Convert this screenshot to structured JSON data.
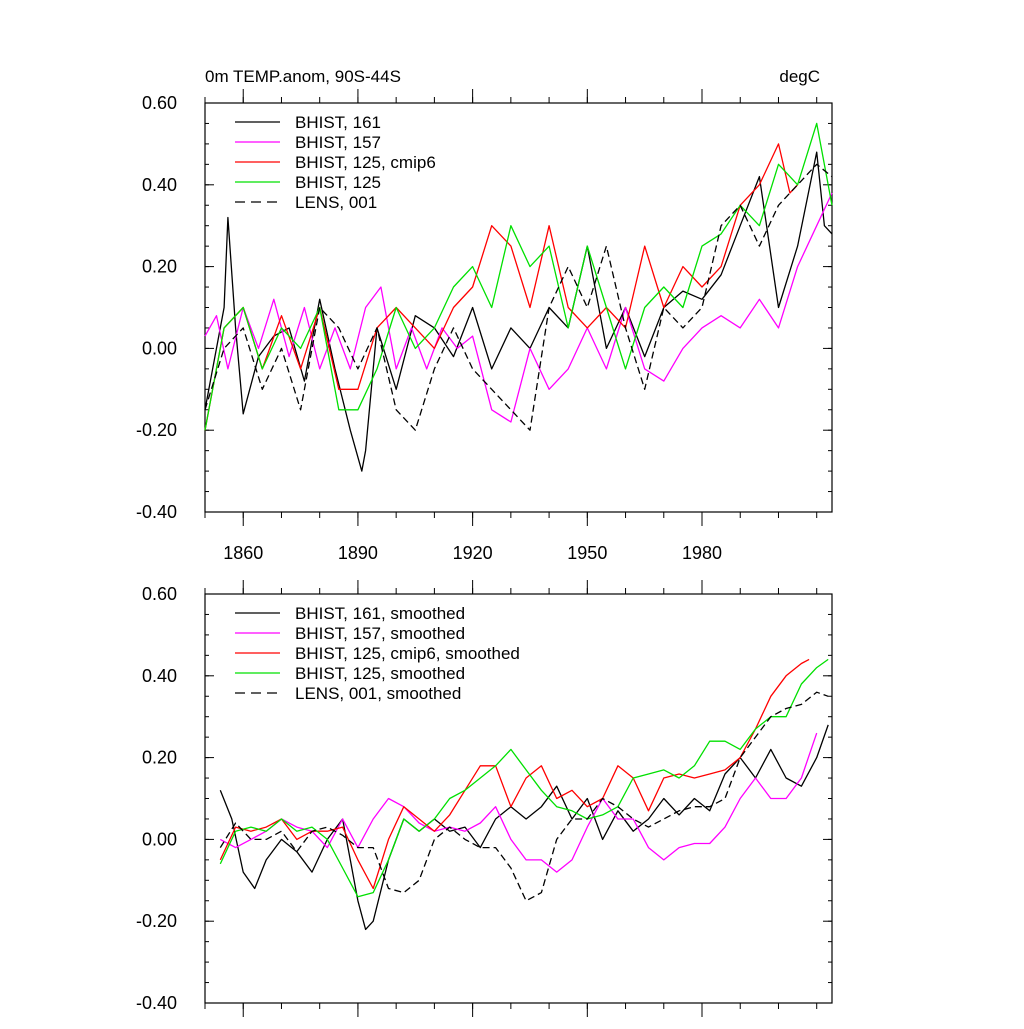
{
  "title_left": "0m TEMP.anom, 90S-44S",
  "title_right": "degC",
  "chart_data": [
    {
      "type": "line",
      "xlim": [
        1850,
        2014
      ],
      "ylim": [
        -0.4,
        0.6
      ],
      "xticks": [
        1860,
        1890,
        1920,
        1950,
        1980
      ],
      "xtick_labels": [
        "1860",
        "1890",
        "1920",
        "1950",
        "1980"
      ],
      "yticks": [
        -0.4,
        -0.2,
        0.0,
        0.2,
        0.4,
        0.6
      ],
      "ytick_labels": [
        "-0.40",
        "-0.20",
        "0.00",
        "0.20",
        "0.40",
        "0.60"
      ],
      "legend_position": "top-left",
      "series": [
        {
          "name": "BHIST, 161",
          "color": "#000000",
          "dash": "solid",
          "x": [
            1850,
            1855,
            1856,
            1858,
            1860,
            1864,
            1868,
            1872,
            1876,
            1880,
            1884,
            1888,
            1891,
            1892,
            1895,
            1900,
            1905,
            1910,
            1915,
            1920,
            1925,
            1930,
            1935,
            1940,
            1945,
            1950,
            1955,
            1960,
            1965,
            1970,
            1975,
            1980,
            1985,
            1990,
            1995,
            2000,
            2005,
            2010,
            2012,
            2014
          ],
          "y": [
            -0.15,
            0.1,
            0.32,
            0.05,
            -0.16,
            -0.02,
            0.03,
            0.05,
            -0.08,
            0.12,
            -0.05,
            -0.2,
            -0.3,
            -0.25,
            0.05,
            -0.1,
            0.08,
            0.05,
            -0.02,
            0.1,
            -0.05,
            0.05,
            0.0,
            0.1,
            0.05,
            0.25,
            0.0,
            0.1,
            -0.02,
            0.1,
            0.14,
            0.12,
            0.18,
            0.3,
            0.42,
            0.1,
            0.25,
            0.48,
            0.3,
            0.28
          ]
        },
        {
          "name": "BHIST, 157",
          "color": "#ff00ff",
          "dash": "solid",
          "x": [
            1850,
            1853,
            1856,
            1860,
            1864,
            1868,
            1872,
            1876,
            1880,
            1884,
            1888,
            1892,
            1896,
            1900,
            1904,
            1908,
            1912,
            1916,
            1920,
            1925,
            1930,
            1935,
            1940,
            1945,
            1950,
            1955,
            1960,
            1965,
            1970,
            1975,
            1980,
            1985,
            1990,
            1995,
            2000,
            2005,
            2010,
            2014
          ],
          "y": [
            0.03,
            0.08,
            -0.05,
            0.1,
            0.0,
            0.12,
            -0.02,
            0.1,
            -0.05,
            0.05,
            -0.05,
            0.1,
            0.15,
            -0.05,
            0.05,
            -0.05,
            0.05,
            0.0,
            0.03,
            -0.15,
            -0.18,
            0.0,
            -0.1,
            -0.05,
            0.05,
            -0.05,
            0.1,
            -0.05,
            -0.08,
            0.0,
            0.05,
            0.08,
            0.05,
            0.12,
            0.05,
            0.2,
            0.3,
            0.38
          ]
        },
        {
          "name": "BHIST, 125, cmip6",
          "color": "#ff0000",
          "dash": "solid",
          "x": [
            1850,
            1855,
            1860,
            1865,
            1870,
            1875,
            1880,
            1885,
            1890,
            1895,
            1900,
            1905,
            1910,
            1915,
            1920,
            1925,
            1930,
            1935,
            1940,
            1945,
            1950,
            1955,
            1960,
            1965,
            1970,
            1975,
            1980,
            1985,
            1990,
            1995,
            2000,
            2003,
            2005
          ],
          "y": [
            -0.2,
            0.05,
            0.1,
            -0.05,
            0.08,
            -0.05,
            0.1,
            -0.1,
            -0.1,
            0.05,
            0.1,
            0.05,
            0.0,
            0.1,
            0.15,
            0.3,
            0.25,
            0.1,
            0.3,
            0.1,
            0.05,
            0.1,
            0.05,
            0.25,
            0.1,
            0.2,
            0.15,
            0.2,
            0.35,
            0.4,
            0.5,
            0.38,
            0.4
          ]
        },
        {
          "name": "BHIST, 125",
          "color": "#00e000",
          "dash": "solid",
          "x": [
            1850,
            1855,
            1860,
            1865,
            1870,
            1875,
            1880,
            1885,
            1890,
            1895,
            1900,
            1905,
            1910,
            1915,
            1920,
            1925,
            1930,
            1935,
            1940,
            1945,
            1950,
            1955,
            1960,
            1965,
            1970,
            1975,
            1980,
            1985,
            1990,
            1995,
            2000,
            2005,
            2010,
            2014
          ],
          "y": [
            -0.2,
            0.05,
            0.1,
            -0.05,
            0.05,
            0.0,
            0.1,
            -0.15,
            -0.15,
            -0.05,
            0.1,
            0.0,
            0.05,
            0.15,
            0.2,
            0.1,
            0.3,
            0.2,
            0.25,
            0.05,
            0.25,
            0.1,
            -0.05,
            0.1,
            0.15,
            0.1,
            0.25,
            0.28,
            0.35,
            0.3,
            0.45,
            0.4,
            0.55,
            0.35
          ]
        },
        {
          "name": "LENS, 001",
          "color": "#000000",
          "dash": "dashed",
          "x": [
            1850,
            1855,
            1860,
            1865,
            1870,
            1875,
            1880,
            1885,
            1890,
            1895,
            1900,
            1905,
            1910,
            1915,
            1920,
            1925,
            1930,
            1935,
            1940,
            1945,
            1950,
            1955,
            1960,
            1965,
            1970,
            1975,
            1980,
            1985,
            1990,
            1995,
            2000,
            2005,
            2010,
            2014
          ],
          "y": [
            -0.15,
            0.0,
            0.05,
            -0.1,
            0.0,
            -0.15,
            0.1,
            0.05,
            -0.05,
            0.05,
            -0.15,
            -0.2,
            -0.05,
            0.05,
            -0.05,
            -0.1,
            -0.15,
            -0.2,
            0.1,
            0.2,
            0.1,
            0.25,
            0.05,
            -0.1,
            0.1,
            0.05,
            0.1,
            0.3,
            0.35,
            0.25,
            0.35,
            0.4,
            0.45,
            0.42
          ]
        }
      ]
    },
    {
      "type": "line",
      "xlim": [
        1850,
        2014
      ],
      "ylim": [
        -0.4,
        0.6
      ],
      "xticks": [
        1860,
        1890,
        1920,
        1950,
        1980
      ],
      "yticks": [
        -0.4,
        -0.2,
        0.0,
        0.2,
        0.4,
        0.6
      ],
      "ytick_labels": [
        "-0.40",
        "-0.20",
        "0.00",
        "0.20",
        "0.40",
        "0.60"
      ],
      "legend_position": "top-left",
      "series": [
        {
          "name": "BHIST, 161, smoothed",
          "color": "#000000",
          "dash": "solid",
          "x": [
            1854,
            1857,
            1860,
            1863,
            1866,
            1870,
            1874,
            1878,
            1882,
            1886,
            1888,
            1890,
            1892,
            1894,
            1898,
            1902,
            1906,
            1910,
            1914,
            1918,
            1922,
            1926,
            1930,
            1934,
            1938,
            1942,
            1946,
            1950,
            1954,
            1958,
            1962,
            1966,
            1970,
            1974,
            1978,
            1982,
            1986,
            1990,
            1994,
            1998,
            2002,
            2006,
            2010,
            2013
          ],
          "y": [
            0.12,
            0.05,
            -0.08,
            -0.12,
            -0.05,
            0.0,
            -0.03,
            -0.08,
            0.0,
            0.05,
            -0.05,
            -0.15,
            -0.22,
            -0.2,
            -0.05,
            0.05,
            0.02,
            0.05,
            0.02,
            0.03,
            -0.02,
            0.05,
            0.08,
            0.05,
            0.08,
            0.13,
            0.05,
            0.1,
            0.0,
            0.07,
            0.02,
            0.05,
            0.1,
            0.06,
            0.1,
            0.07,
            0.16,
            0.2,
            0.15,
            0.22,
            0.15,
            0.13,
            0.2,
            0.28
          ]
        },
        {
          "name": "BHIST, 157, smoothed",
          "color": "#ff00ff",
          "dash": "solid",
          "x": [
            1854,
            1858,
            1862,
            1866,
            1870,
            1874,
            1878,
            1882,
            1886,
            1890,
            1894,
            1898,
            1902,
            1906,
            1910,
            1914,
            1918,
            1922,
            1926,
            1930,
            1934,
            1938,
            1942,
            1946,
            1950,
            1954,
            1958,
            1962,
            1966,
            1970,
            1974,
            1978,
            1982,
            1986,
            1990,
            1994,
            1998,
            2002,
            2006,
            2010
          ],
          "y": [
            0.0,
            -0.02,
            0.0,
            0.02,
            0.05,
            0.03,
            0.02,
            -0.02,
            0.05,
            -0.02,
            0.05,
            0.1,
            0.08,
            0.04,
            0.02,
            0.03,
            0.02,
            0.04,
            0.08,
            0.0,
            -0.05,
            -0.05,
            -0.08,
            -0.05,
            0.03,
            0.1,
            0.05,
            0.05,
            -0.02,
            -0.05,
            -0.02,
            -0.01,
            -0.01,
            0.03,
            0.1,
            0.15,
            0.1,
            0.1,
            0.15,
            0.26
          ]
        },
        {
          "name": "BHIST, 125, cmip6, smoothed",
          "color": "#ff0000",
          "dash": "solid",
          "x": [
            1854,
            1858,
            1862,
            1866,
            1870,
            1874,
            1878,
            1882,
            1886,
            1890,
            1894,
            1898,
            1902,
            1906,
            1910,
            1914,
            1918,
            1922,
            1926,
            1930,
            1934,
            1938,
            1942,
            1946,
            1950,
            1954,
            1958,
            1962,
            1966,
            1970,
            1974,
            1978,
            1982,
            1986,
            1990,
            1994,
            1998,
            2002,
            2006,
            2008
          ],
          "y": [
            -0.05,
            0.03,
            0.02,
            0.03,
            0.05,
            0.0,
            0.02,
            0.02,
            0.03,
            -0.05,
            -0.12,
            0.0,
            0.08,
            0.05,
            0.02,
            0.06,
            0.12,
            0.18,
            0.18,
            0.08,
            0.15,
            0.18,
            0.1,
            0.12,
            0.08,
            0.1,
            0.18,
            0.15,
            0.07,
            0.15,
            0.16,
            0.15,
            0.16,
            0.17,
            0.2,
            0.27,
            0.35,
            0.4,
            0.43,
            0.44
          ]
        },
        {
          "name": "BHIST, 125, smoothed",
          "color": "#00e000",
          "dash": "solid",
          "x": [
            1854,
            1858,
            1862,
            1866,
            1870,
            1874,
            1878,
            1882,
            1886,
            1890,
            1894,
            1898,
            1902,
            1906,
            1910,
            1914,
            1918,
            1922,
            1926,
            1930,
            1934,
            1938,
            1942,
            1946,
            1950,
            1954,
            1958,
            1962,
            1966,
            1970,
            1974,
            1978,
            1982,
            1986,
            1990,
            1994,
            1998,
            2002,
            2006,
            2010,
            2013
          ],
          "y": [
            -0.06,
            0.02,
            0.03,
            0.02,
            0.05,
            0.02,
            0.03,
            0.0,
            -0.07,
            -0.14,
            -0.13,
            -0.05,
            0.05,
            0.02,
            0.05,
            0.1,
            0.12,
            0.15,
            0.18,
            0.22,
            0.17,
            0.12,
            0.08,
            0.07,
            0.05,
            0.06,
            0.08,
            0.15,
            0.16,
            0.17,
            0.15,
            0.18,
            0.24,
            0.24,
            0.22,
            0.27,
            0.3,
            0.3,
            0.38,
            0.42,
            0.44
          ]
        },
        {
          "name": "LENS, 001, smoothed",
          "color": "#000000",
          "dash": "dashed",
          "x": [
            1854,
            1858,
            1862,
            1866,
            1870,
            1874,
            1878,
            1882,
            1886,
            1890,
            1894,
            1898,
            1902,
            1906,
            1910,
            1914,
            1918,
            1922,
            1926,
            1930,
            1934,
            1938,
            1942,
            1946,
            1950,
            1954,
            1958,
            1962,
            1966,
            1970,
            1974,
            1978,
            1982,
            1986,
            1990,
            1994,
            1998,
            2002,
            2006,
            2010,
            2013
          ],
          "y": [
            -0.02,
            0.04,
            0.0,
            0.0,
            0.02,
            -0.03,
            0.02,
            0.03,
            0.01,
            -0.02,
            -0.02,
            -0.12,
            -0.13,
            -0.1,
            0.0,
            0.03,
            0.0,
            -0.02,
            -0.02,
            -0.07,
            -0.15,
            -0.13,
            0.0,
            0.05,
            0.05,
            0.1,
            0.08,
            0.05,
            0.03,
            0.05,
            0.07,
            0.08,
            0.08,
            0.1,
            0.2,
            0.25,
            0.3,
            0.32,
            0.33,
            0.36,
            0.35
          ]
        }
      ]
    }
  ]
}
